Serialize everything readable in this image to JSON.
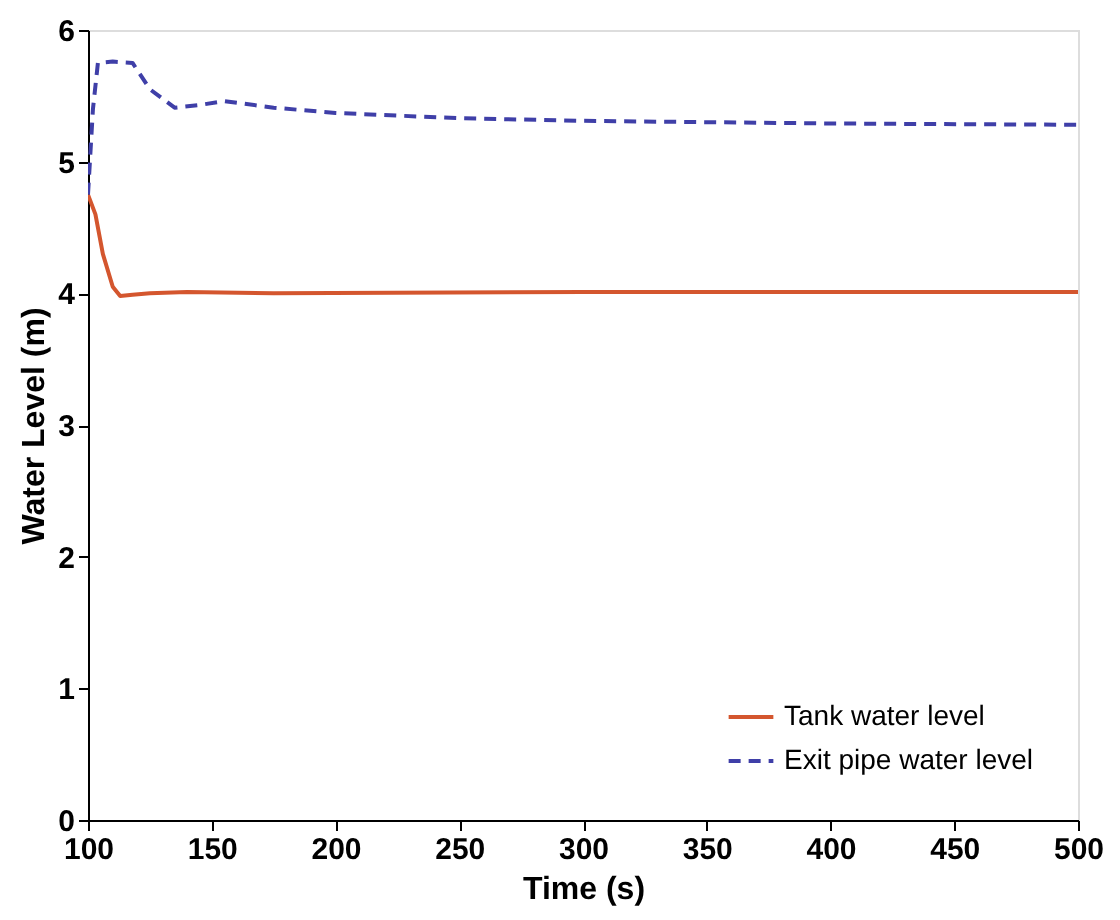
{
  "chart_data": {
    "type": "line",
    "xlabel": "Time (s)",
    "ylabel": "Water Level (m)",
    "xlim": [
      100,
      500
    ],
    "ylim": [
      0,
      6
    ],
    "xticks": [
      100,
      150,
      200,
      250,
      300,
      350,
      400,
      450,
      500
    ],
    "yticks": [
      0,
      1,
      2,
      3,
      4,
      5,
      6
    ],
    "grid": false,
    "legend": "bottom right",
    "series": [
      {
        "name": "Tank water level",
        "color": "#d4562e",
        "line_style": "solid",
        "x": [
          100,
          103,
          106,
          110,
          113,
          118,
          125,
          140,
          175,
          300,
          500
        ],
        "values": [
          4.75,
          4.6,
          4.3,
          4.05,
          3.98,
          3.99,
          4.0,
          4.01,
          4.0,
          4.01,
          4.01
        ]
      },
      {
        "name": "Exit pipe water level",
        "color": "#3f3fa8",
        "line_style": "dashed",
        "x": [
          100,
          102,
          104,
          110,
          118,
          125,
          135,
          145,
          155,
          175,
          200,
          250,
          300,
          350,
          400,
          500
        ],
        "values": [
          4.75,
          5.4,
          5.75,
          5.76,
          5.75,
          5.55,
          5.41,
          5.43,
          5.46,
          5.41,
          5.37,
          5.33,
          5.31,
          5.3,
          5.29,
          5.28
        ]
      }
    ]
  }
}
